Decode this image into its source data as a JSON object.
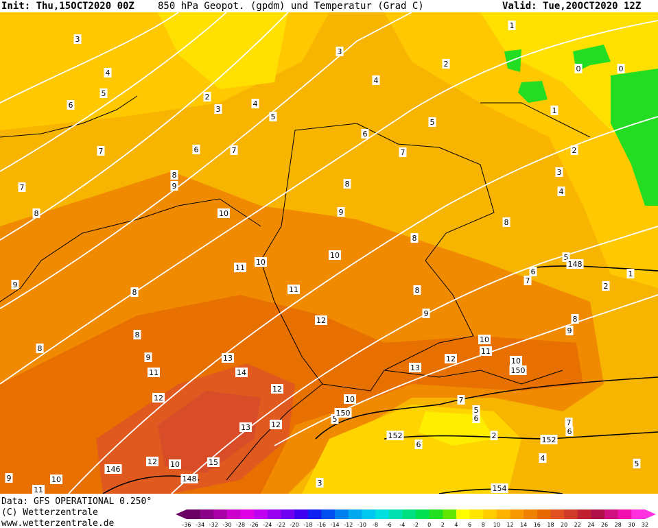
{
  "header": {
    "init": "Init: Thu,15OCT2020 00Z",
    "title": "850 hPa Geopot. (gpdm) und Temperatur (Grad C)",
    "valid": "Valid: Tue,20OCT2020 12Z"
  },
  "map": {
    "temperature_labels": [
      "3",
      "3",
      "4",
      "4",
      "5",
      "2",
      "3",
      "4",
      "5",
      "6",
      "5",
      "1",
      "2",
      "0",
      "0",
      "1",
      "2",
      "3",
      "4",
      "6",
      "7",
      "6",
      "7",
      "7",
      "8",
      "9",
      "8",
      "9",
      "10",
      "8",
      "7",
      "8",
      "8",
      "10",
      "10",
      "11",
      "5",
      "6",
      "7",
      "2",
      "1",
      "9",
      "8",
      "11",
      "8",
      "9",
      "12",
      "8",
      "9",
      "8",
      "10",
      "11",
      "8",
      "9",
      "13",
      "12",
      "10",
      "13",
      "11",
      "14",
      "12",
      "10",
      "12",
      "7",
      "5",
      "5",
      "6",
      "13",
      "12",
      "2",
      "7",
      "6",
      "6",
      "15",
      "10",
      "12",
      "4",
      "5",
      "3",
      "9",
      "10",
      "11"
    ],
    "geopotential_labels": [
      "148",
      "150",
      "150",
      "152",
      "152",
      "146",
      "148",
      "154"
    ]
  },
  "footer": {
    "data": "Data: GFS OPERATIONAL 0.250°",
    "copyright": "(C) Wetterzentrale",
    "url": "www.wetterzentrale.de"
  },
  "colorbar": {
    "ticks": [
      -36,
      -34,
      -32,
      -30,
      -28,
      -26,
      -24,
      -22,
      -20,
      -18,
      -16,
      -14,
      -12,
      -10,
      -8,
      -6,
      -4,
      -2,
      0,
      2,
      4,
      6,
      8,
      10,
      12,
      14,
      16,
      18,
      20,
      22,
      24,
      26,
      28,
      30,
      32
    ],
    "colors": [
      "#6a0064",
      "#8a0086",
      "#aa00a8",
      "#cc00cc",
      "#e000e6",
      "#c000f0",
      "#9a00f0",
      "#7000f0",
      "#4000f0",
      "#1020f0",
      "#0050f0",
      "#0080f0",
      "#00a8f0",
      "#00c8f0",
      "#00e0e0",
      "#00e0b0",
      "#00e080",
      "#00e050",
      "#20e020",
      "#60e600",
      "#ffff00",
      "#ffe600",
      "#ffcc00",
      "#ffb300",
      "#f89800",
      "#f08000",
      "#e86800",
      "#e05020",
      "#d03a28",
      "#c02030",
      "#b01048",
      "#d01080",
      "#f010b0",
      "#ff30e0"
    ]
  }
}
